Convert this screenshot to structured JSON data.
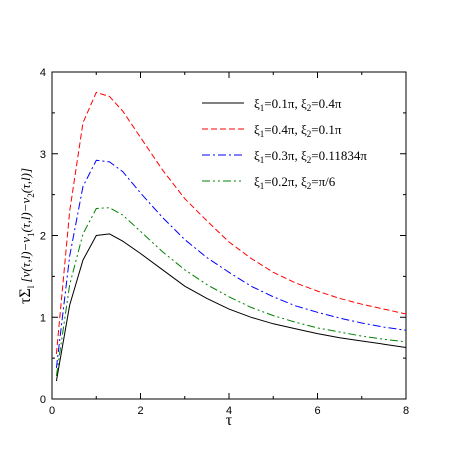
{
  "chart_data": {
    "type": "line",
    "title": "",
    "xlabel": "τ",
    "ylabel": "τΣ_l [ν(τ,l)−ν_1(τ,l)−ν_2(τ,l)]",
    "xlim": [
      0,
      8
    ],
    "ylim": [
      0,
      4
    ],
    "x_ticks": [
      "0",
      "2",
      "4",
      "6",
      "8"
    ],
    "y_ticks": [
      "0",
      "1",
      "2",
      "3",
      "4"
    ],
    "grid": false,
    "legend_position": "top-right",
    "series": [
      {
        "name": "ξ1=0.1π, ξ2=0.4π",
        "color": "#000000",
        "style": "solid",
        "x": [
          0.1,
          0.4,
          0.7,
          1.0,
          1.3,
          1.6,
          2.0,
          2.5,
          3.0,
          3.5,
          4.0,
          4.5,
          5.0,
          5.5,
          6.0,
          6.5,
          7.0,
          7.5,
          8.0
        ],
        "y": [
          0.22,
          1.15,
          1.7,
          2.0,
          2.02,
          1.93,
          1.78,
          1.58,
          1.38,
          1.23,
          1.1,
          1.0,
          0.92,
          0.86,
          0.8,
          0.75,
          0.71,
          0.67,
          0.63
        ]
      },
      {
        "name": "ξ1=0.4π, ξ2=0.1π",
        "color": "#ff0000",
        "style": "dashed",
        "x": [
          0.1,
          0.4,
          0.7,
          1.0,
          1.3,
          1.6,
          2.0,
          2.5,
          3.0,
          3.5,
          4.0,
          4.5,
          5.0,
          5.5,
          6.0,
          6.5,
          7.0,
          7.5,
          8.0
        ],
        "y": [
          0.55,
          2.3,
          3.38,
          3.75,
          3.7,
          3.52,
          3.2,
          2.8,
          2.45,
          2.18,
          1.92,
          1.72,
          1.55,
          1.42,
          1.32,
          1.23,
          1.16,
          1.1,
          1.04
        ]
      },
      {
        "name": "ξ1=0.3π, ξ2=0.11834π",
        "color": "#0000ff",
        "style": "dashdot",
        "x": [
          0.1,
          0.4,
          0.7,
          1.0,
          1.3,
          1.6,
          2.0,
          2.5,
          3.0,
          3.5,
          4.0,
          4.5,
          5.0,
          5.5,
          6.0,
          6.5,
          7.0,
          7.5,
          8.0
        ],
        "y": [
          0.38,
          1.75,
          2.6,
          2.92,
          2.9,
          2.78,
          2.52,
          2.22,
          1.95,
          1.73,
          1.55,
          1.38,
          1.25,
          1.14,
          1.06,
          0.99,
          0.93,
          0.88,
          0.84
        ]
      },
      {
        "name": "ξ1=0.2π, ξ2=π/6",
        "color": "#008000",
        "style": "dashdotdot",
        "x": [
          0.1,
          0.4,
          0.7,
          1.0,
          1.3,
          1.6,
          2.0,
          2.5,
          3.0,
          3.5,
          4.0,
          4.5,
          5.0,
          5.5,
          6.0,
          6.5,
          7.0,
          7.5,
          8.0
        ],
        "y": [
          0.28,
          1.4,
          2.02,
          2.33,
          2.34,
          2.25,
          2.05,
          1.8,
          1.58,
          1.4,
          1.25,
          1.12,
          1.02,
          0.94,
          0.87,
          0.82,
          0.77,
          0.73,
          0.7
        ]
      }
    ]
  }
}
